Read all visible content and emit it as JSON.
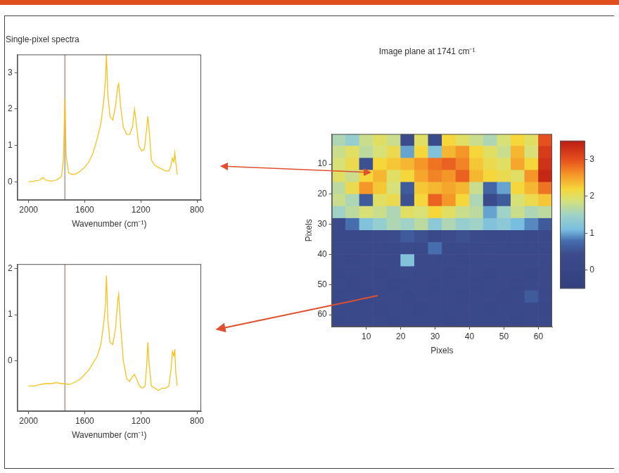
{
  "chart_data": [
    {
      "type": "line",
      "title": "Single-pixel spectra",
      "x_label": "Wavenumber (cm⁻¹)",
      "x": [
        2000,
        1960,
        1920,
        1900,
        1880,
        1840,
        1800,
        1765,
        1752,
        1741,
        1732,
        1715,
        1690,
        1660,
        1630,
        1600,
        1570,
        1540,
        1510,
        1485,
        1465,
        1452,
        1445,
        1435,
        1420,
        1400,
        1380,
        1365,
        1358,
        1345,
        1325,
        1300,
        1280,
        1260,
        1245,
        1235,
        1215,
        1195,
        1175,
        1160,
        1150,
        1140,
        1125,
        1100,
        1075,
        1050,
        1025,
        1000,
        985,
        975,
        965,
        958,
        950,
        940
      ],
      "values": [
        0,
        0.02,
        0.05,
        0.12,
        0.05,
        0.02,
        0.05,
        0.15,
        0.6,
        2.3,
        0.7,
        0.25,
        0.2,
        0.22,
        0.3,
        0.4,
        0.55,
        0.8,
        1.2,
        1.6,
        2.2,
        2.8,
        3.5,
        2.4,
        1.8,
        1.7,
        2.1,
        2.6,
        2.7,
        2.1,
        1.5,
        1.3,
        1.3,
        1.5,
        2.0,
        1.7,
        1.0,
        0.85,
        0.9,
        1.4,
        1.8,
        1.4,
        0.6,
        0.45,
        0.4,
        0.35,
        0.3,
        0.3,
        0.45,
        0.65,
        0.55,
        0.8,
        0.5,
        0.2
      ],
      "color": "#f5c31c",
      "xlim": [
        2080,
        770
      ],
      "xticks": [
        2000,
        1600,
        1200,
        800
      ],
      "ylim": [
        -0.5,
        3.5
      ],
      "yticks": [
        0,
        1,
        2,
        3
      ],
      "vline": {
        "x": 1741,
        "color": "#b8b0a8"
      },
      "grid": false
    },
    {
      "type": "line",
      "x_label": "Wavenumber (cm⁻¹)",
      "x": [
        2000,
        1960,
        1920,
        1880,
        1840,
        1800,
        1765,
        1741,
        1715,
        1690,
        1660,
        1630,
        1600,
        1570,
        1540,
        1510,
        1485,
        1465,
        1452,
        1445,
        1435,
        1420,
        1400,
        1380,
        1365,
        1358,
        1345,
        1325,
        1300,
        1280,
        1260,
        1245,
        1230,
        1210,
        1190,
        1170,
        1160,
        1150,
        1140,
        1125,
        1100,
        1075,
        1050,
        1025,
        1000,
        985,
        975,
        965,
        958,
        950,
        940
      ],
      "values": [
        -0.55,
        -0.55,
        -0.52,
        -0.5,
        -0.5,
        -0.48,
        -0.5,
        -0.5,
        -0.52,
        -0.5,
        -0.45,
        -0.4,
        -0.3,
        -0.2,
        -0.05,
        0.1,
        0.35,
        0.8,
        1.2,
        1.85,
        0.9,
        0.4,
        0.35,
        0.7,
        1.3,
        1.45,
        0.8,
        0.0,
        -0.4,
        -0.45,
        -0.35,
        -0.3,
        -0.4,
        -0.55,
        -0.6,
        -0.55,
        -0.2,
        0.4,
        -0.1,
        -0.55,
        -0.6,
        -0.65,
        -0.6,
        -0.6,
        -0.55,
        -0.2,
        0.2,
        0.1,
        0.25,
        -0.3,
        -0.55
      ],
      "color": "#f5c31c",
      "xlim": [
        2080,
        770
      ],
      "xticks": [
        2000,
        1600,
        1200,
        800
      ],
      "ylim": [
        -1.1,
        2.1
      ],
      "yticks": [
        0,
        1,
        2
      ],
      "vline": {
        "x": 1741,
        "color": "#b8b0a8"
      },
      "grid": false
    },
    {
      "type": "heatmap",
      "title": "Image plane at 1741 cm⁻¹",
      "x_label": "Pixels",
      "y_label": "Pixels",
      "x": [
        2,
        6,
        10,
        14,
        18,
        22,
        26,
        30,
        34,
        38,
        42,
        46,
        50,
        54,
        58,
        62
      ],
      "y": [
        2,
        6,
        10,
        14,
        18,
        22,
        26,
        30,
        34,
        38,
        42,
        46,
        50,
        54,
        58,
        62
      ],
      "cells": [
        [
          1.6,
          1.4,
          1.8,
          2.0,
          1.8,
          0.4,
          2.0,
          0.3,
          2.2,
          2.0,
          1.8,
          1.6,
          1.9,
          2.2,
          2.0,
          3.0
        ],
        [
          1.8,
          2.0,
          1.7,
          1.9,
          2.1,
          1.0,
          2.2,
          1.2,
          2.4,
          2.6,
          2.2,
          2.0,
          1.8,
          2.4,
          1.9,
          3.2
        ],
        [
          1.9,
          2.1,
          0.5,
          2.2,
          2.3,
          2.4,
          2.6,
          2.8,
          2.9,
          2.7,
          2.3,
          2.1,
          2.0,
          2.5,
          2.2,
          3.3
        ],
        [
          2.0,
          1.8,
          2.2,
          2.4,
          2.0,
          2.2,
          2.5,
          2.7,
          2.6,
          2.9,
          2.4,
          2.2,
          2.1,
          2.0,
          2.6,
          3.4
        ],
        [
          1.7,
          2.1,
          2.6,
          2.3,
          1.9,
          0.6,
          2.3,
          2.4,
          2.5,
          2.4,
          1.8,
          0.7,
          1.0,
          2.2,
          2.4,
          2.8
        ],
        [
          1.8,
          1.6,
          0.6,
          2.0,
          2.1,
          0.5,
          2.2,
          2.9,
          2.6,
          2.2,
          1.6,
          0.3,
          0.6,
          1.9,
          2.1,
          2.3
        ],
        [
          1.5,
          1.7,
          1.9,
          1.8,
          1.6,
          2.0,
          1.9,
          2.2,
          2.0,
          1.8,
          1.7,
          1.0,
          1.5,
          1.8,
          1.6,
          1.7
        ],
        [
          0.3,
          0.8,
          1.2,
          1.4,
          1.6,
          1.5,
          1.7,
          1.3,
          1.6,
          1.4,
          1.5,
          1.2,
          1.3,
          1.1,
          0.9,
          0.6
        ],
        [
          0.2,
          0.2,
          0.2,
          0.3,
          0.4,
          0.6,
          0.5,
          0.2,
          0.4,
          0.5,
          0.3,
          0.2,
          0.2,
          0.3,
          0.2,
          0.2
        ],
        [
          0.2,
          0.2,
          0.2,
          0.2,
          0.2,
          0.3,
          0.2,
          0.8,
          0.2,
          0.2,
          0.2,
          0.3,
          0.2,
          0.2,
          0.2,
          0.2
        ],
        [
          0.2,
          0.1,
          0.2,
          0.2,
          0.2,
          1.2,
          0.2,
          0.2,
          0.2,
          0.1,
          0.2,
          0.2,
          0.2,
          0.2,
          0.2,
          0.2
        ],
        [
          0.1,
          0.2,
          0.2,
          0.1,
          0.2,
          0.3,
          0.2,
          0.2,
          0.1,
          0.2,
          0.2,
          0.1,
          0.2,
          0.2,
          0.1,
          0.2
        ],
        [
          0.2,
          0.1,
          0.2,
          0.2,
          0.1,
          0.2,
          0.2,
          0.1,
          0.2,
          0.2,
          0.1,
          0.2,
          0.2,
          0.1,
          0.2,
          0.2
        ],
        [
          0.1,
          0.2,
          0.1,
          0.2,
          0.2,
          0.1,
          0.2,
          0.2,
          0.2,
          0.1,
          0.2,
          0.2,
          0.1,
          0.2,
          0.6,
          0.2
        ],
        [
          0.2,
          0.2,
          0.2,
          0.1,
          0.2,
          0.2,
          0.1,
          0.2,
          0.2,
          0.2,
          0.2,
          0.1,
          0.2,
          0.2,
          0.2,
          0.1
        ],
        [
          0.1,
          0.2,
          0.2,
          0.2,
          0.1,
          0.2,
          0.2,
          0.2,
          0.1,
          0.2,
          0.2,
          0.2,
          0.2,
          0.1,
          0.2,
          0.2
        ]
      ],
      "xlim": [
        0,
        64
      ],
      "xticks": [
        10,
        20,
        30,
        40,
        50,
        60
      ],
      "ylim": [
        64,
        0
      ],
      "yticks": [
        10,
        20,
        30,
        40,
        50,
        60
      ],
      "colorbar": {
        "range": [
          -0.5,
          3.5
        ],
        "ticks": [
          0,
          1,
          2,
          3
        ]
      },
      "grid": false
    }
  ]
}
